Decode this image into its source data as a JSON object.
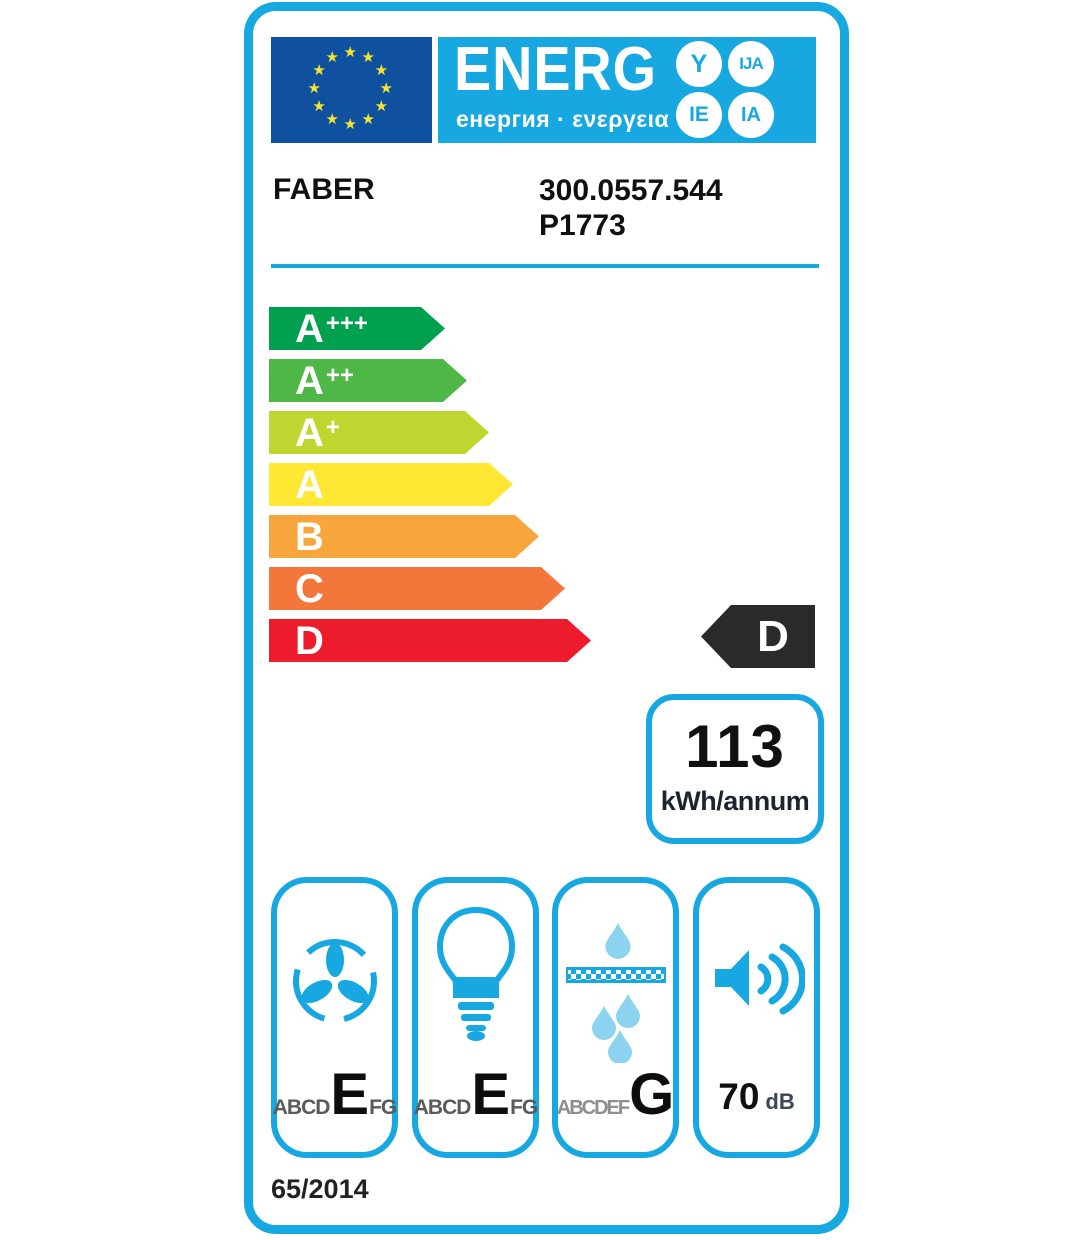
{
  "palette": {
    "cyan": "#17a8e2",
    "cyan-light": "#8cd3f0",
    "eu-blue": "#10519f",
    "star-yellow": "#f7e52c",
    "badge-black": "#2a2a2a",
    "text-gray": "#5a5a5a",
    "text-gray-light": "#8e8e8e"
  },
  "header": {
    "logo_word": "ENERG",
    "logo_subtitle": "енергия · ενεργεια",
    "logo_circles": [
      "Y",
      "IJA",
      "IE",
      "IA"
    ]
  },
  "product": {
    "brand": "FABER",
    "model_line1": "300.0557.544",
    "model_line2": "P1773"
  },
  "rating_scale": {
    "arrows": [
      {
        "letter": "A",
        "plus": "+++",
        "color": "#00a04e"
      },
      {
        "letter": "A",
        "plus": "++",
        "color": "#4fb648"
      },
      {
        "letter": "A",
        "plus": "+",
        "color": "#bed62f"
      },
      {
        "letter": "A",
        "plus": "",
        "color": "#ffe734"
      },
      {
        "letter": "B",
        "plus": "",
        "color": "#f8a53c"
      },
      {
        "letter": "C",
        "plus": "",
        "color": "#f3763b"
      },
      {
        "letter": "D",
        "plus": "",
        "color": "#ec1c2d"
      }
    ]
  },
  "rating": {
    "grade": "D"
  },
  "energy": {
    "value": "113",
    "unit": "kWh/annum"
  },
  "features": [
    {
      "name": "fan-efficiency",
      "scale_prefix": "ABCD",
      "grade": "E",
      "scale_suffix": "FG"
    },
    {
      "name": "lighting-efficiency",
      "scale_prefix": "ABCD",
      "grade": "E",
      "scale_suffix": "FG"
    },
    {
      "name": "grease-filter-efficiency",
      "scale_prefix": "ABCDEF",
      "grade": "G",
      "scale_suffix": ""
    },
    {
      "name": "noise-level",
      "value": "70",
      "unit": "dB"
    }
  ],
  "icons": {
    "fan": "fan-icon",
    "lighting": "light-bulb-icon",
    "grease_filter": "filter-droplets-icon",
    "noise": "speaker-icon",
    "flag": "eu-flag-stars"
  },
  "footer": {
    "regulation": "65/2014"
  }
}
